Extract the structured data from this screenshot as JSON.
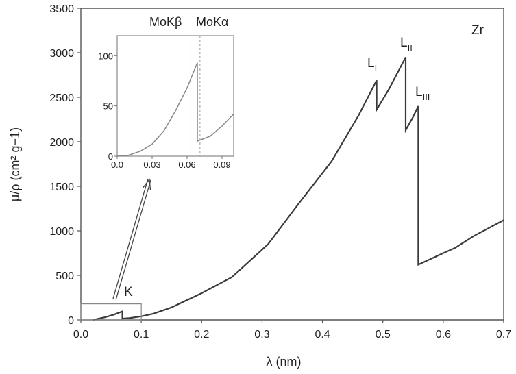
{
  "chart_data": {
    "type": "line",
    "title": "",
    "xlabel": "λ (nm)",
    "ylabel": "μ/ρ (cm² g−1)",
    "xlim": [
      0,
      0.7
    ],
    "ylim": [
      0,
      3500
    ],
    "xticks": [
      "0.0",
      "0.1",
      "0.2",
      "0.3",
      "0.4",
      "0.5",
      "0.6",
      "0.7"
    ],
    "yticks": [
      "0",
      "500",
      "1000",
      "1500",
      "2000",
      "2500",
      "3000",
      "3500"
    ],
    "grid": false,
    "series": [
      {
        "name": "",
        "x": [
          0.02,
          0.04,
          0.055,
          0.0688,
          0.0688,
          0.08,
          0.1,
          0.12,
          0.15,
          0.2,
          0.25,
          0.31,
          0.36,
          0.415,
          0.46,
          0.4897,
          0.4897,
          0.51,
          0.5378,
          0.5378,
          0.55,
          0.5586,
          0.5586,
          0.6,
          0.62,
          0.65,
          0.7
        ],
        "y": [
          0,
          30,
          60,
          95,
          15,
          20,
          40,
          70,
          140,
          300,
          480,
          850,
          1300,
          1780,
          2300,
          2690,
          2360,
          2590,
          2950,
          2130,
          2280,
          2400,
          620,
          750,
          810,
          940,
          1120
        ]
      }
    ],
    "annotations": {
      "element": "Zr",
      "k_edge": "K",
      "l1_base": "L",
      "l1_sub": "I",
      "l2_base": "L",
      "l2_sub": "II",
      "l3_base": "L",
      "l3_sub": "III",
      "mokb": "MoKβ",
      "moka": "MoKα"
    },
    "inset": {
      "type": "line",
      "xlim": [
        0,
        0.1
      ],
      "ylim": [
        0,
        120
      ],
      "xticks": [
        "0.0",
        "0.03",
        "0.06",
        "0.09"
      ],
      "yticks": [
        "0",
        "50",
        "100"
      ],
      "markers": [
        0.0632,
        0.0711
      ],
      "x": [
        0.0,
        0.01,
        0.02,
        0.03,
        0.04,
        0.05,
        0.06,
        0.0688,
        0.0688,
        0.08,
        0.09,
        0.1
      ],
      "y": [
        0,
        1,
        5,
        12,
        25,
        45,
        68,
        93,
        15,
        20,
        30,
        42
      ]
    }
  }
}
